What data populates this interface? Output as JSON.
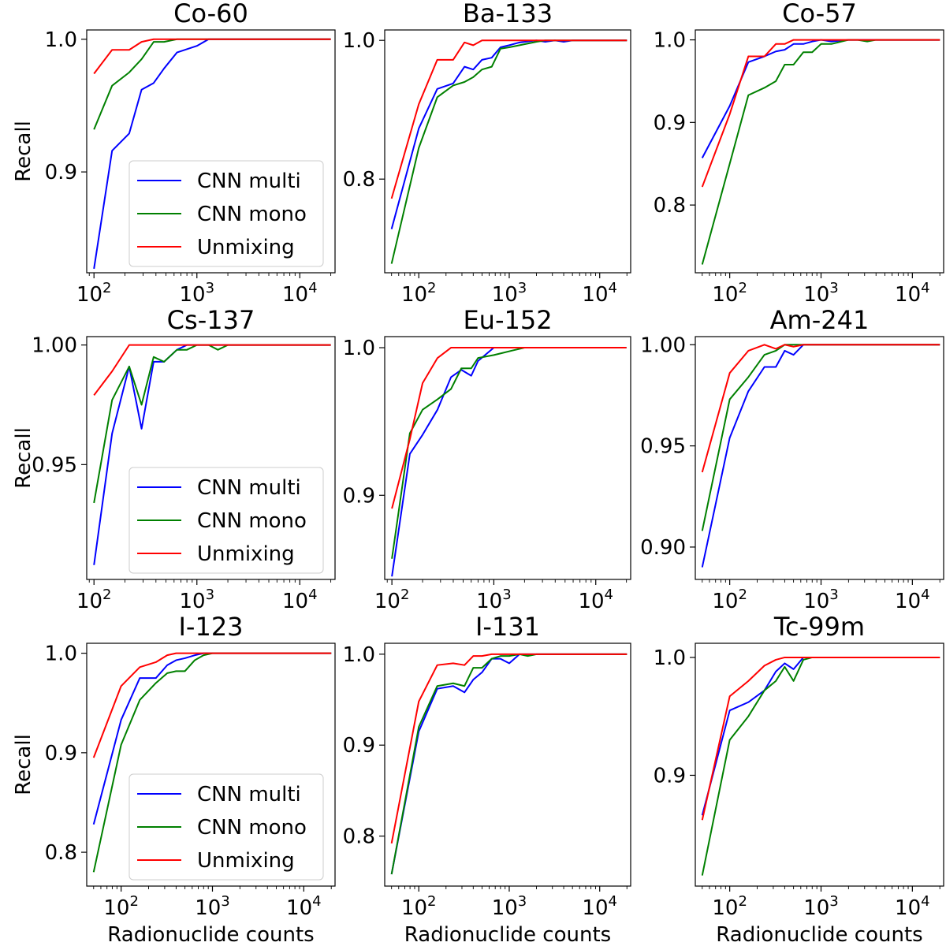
{
  "figure": {
    "series_names": [
      "CNN multi",
      "CNN mono",
      "Unmixing"
    ],
    "series_colors": [
      "#0000ff",
      "#008000",
      "#ff0000"
    ],
    "xlabel": "Radionuclide counts",
    "ylabel": "Recall",
    "xtick_base": "10"
  },
  "chart_data": [
    {
      "type": "line",
      "title": "Co-60",
      "xscale": "log",
      "xlim": [
        85,
        22000
      ],
      "ylim": [
        0.824,
        1.007
      ],
      "yticks": [
        0.9,
        1.0
      ],
      "ytick_labels": [
        "0.9",
        "1.0"
      ],
      "xticks": [
        100,
        1000,
        10000
      ],
      "xtick_exponents": [
        "2",
        "3",
        "4"
      ],
      "ylabel": "Recall",
      "xlabel": "",
      "legend": true,
      "legend_loc": "lower-right",
      "x": [
        100,
        150,
        220,
        290,
        380,
        480,
        640,
        1000,
        1300,
        2000,
        20000
      ],
      "series": [
        {
          "name": "CNN multi",
          "values": [
            0.827,
            0.916,
            0.929,
            0.962,
            0.967,
            0.978,
            0.99,
            0.995,
            1.0,
            1.0,
            1.0
          ]
        },
        {
          "name": "CNN mono",
          "values": [
            0.932,
            0.965,
            0.975,
            0.985,
            0.998,
            0.998,
            1.0,
            1.0,
            1.0,
            1.0,
            1.0
          ]
        },
        {
          "name": "Unmixing",
          "values": [
            0.974,
            0.992,
            0.992,
            0.998,
            1.0,
            1.0,
            1.0,
            1.0,
            1.0,
            1.0,
            1.0
          ]
        }
      ]
    },
    {
      "type": "line",
      "title": "Ba-133",
      "xscale": "log",
      "xlim": [
        42,
        22000
      ],
      "ylim": [
        0.665,
        1.015
      ],
      "yticks": [
        0.8,
        1.0
      ],
      "ytick_labels": [
        "0.8",
        "1.0"
      ],
      "xticks": [
        100,
        1000,
        10000
      ],
      "xtick_exponents": [
        "2",
        "3",
        "4"
      ],
      "ylabel": "",
      "xlabel": "",
      "legend": false,
      "legend_loc": "",
      "x": [
        50,
        100,
        160,
        240,
        320,
        400,
        500,
        640,
        800,
        1000,
        1300,
        2000,
        2500,
        3200,
        4000,
        5000,
        20000
      ],
      "series": [
        {
          "name": "CNN multi",
          "values": [
            0.728,
            0.873,
            0.93,
            0.938,
            0.962,
            0.958,
            0.972,
            0.975,
            0.99,
            0.993,
            0.997,
            1.0,
            0.998,
            1.0,
            0.998,
            1.0,
            1.0
          ]
        },
        {
          "name": "CNN mono",
          "values": [
            0.678,
            0.845,
            0.918,
            0.935,
            0.94,
            0.947,
            0.958,
            0.962,
            0.988,
            0.99,
            0.993,
            0.998,
            1.0,
            1.0,
            1.0,
            1.0,
            1.0
          ]
        },
        {
          "name": "Unmixing",
          "values": [
            0.772,
            0.908,
            0.972,
            0.972,
            0.997,
            0.993,
            1.0,
            1.0,
            1.0,
            1.0,
            1.0,
            1.0,
            1.0,
            1.0,
            1.0,
            1.0,
            1.0
          ]
        }
      ]
    },
    {
      "type": "line",
      "title": "Co-57",
      "xscale": "log",
      "xlim": [
        42,
        22000
      ],
      "ylim": [
        0.718,
        1.012
      ],
      "yticks": [
        0.8,
        0.9,
        1.0
      ],
      "ytick_labels": [
        "0.8",
        "0.9",
        "1.0"
      ],
      "xticks": [
        100,
        1000,
        10000
      ],
      "xtick_exponents": [
        "2",
        "3",
        "4"
      ],
      "ylabel": "",
      "xlabel": "",
      "legend": false,
      "legend_loc": "",
      "x": [
        50,
        100,
        160,
        240,
        320,
        400,
        500,
        640,
        800,
        1000,
        1300,
        2000,
        2500,
        3200,
        4000,
        5000,
        20000
      ],
      "series": [
        {
          "name": "CNN multi",
          "values": [
            0.857,
            0.92,
            0.973,
            0.98,
            0.986,
            0.988,
            0.995,
            0.995,
            0.998,
            1.0,
            0.998,
            1.0,
            1.0,
            1.0,
            1.0,
            1.0,
            1.0
          ]
        },
        {
          "name": "CNN mono",
          "values": [
            0.728,
            0.85,
            0.933,
            0.942,
            0.95,
            0.97,
            0.97,
            0.985,
            0.985,
            0.995,
            0.995,
            1.0,
            1.0,
            0.998,
            1.0,
            1.0,
            1.0
          ]
        },
        {
          "name": "Unmixing",
          "values": [
            0.822,
            0.91,
            0.98,
            0.98,
            0.995,
            0.995,
            1.0,
            1.0,
            1.0,
            1.0,
            1.0,
            1.0,
            1.0,
            1.0,
            1.0,
            1.0,
            1.0
          ]
        }
      ]
    },
    {
      "type": "line",
      "title": "Cs-137",
      "xscale": "log",
      "xlim": [
        85,
        22000
      ],
      "ylim": [
        0.902,
        1.0035
      ],
      "yticks": [
        0.95,
        1.0
      ],
      "ytick_labels": [
        "0.95",
        "1.00"
      ],
      "xticks": [
        100,
        1000,
        10000
      ],
      "xtick_exponents": [
        "2",
        "3",
        "4"
      ],
      "ylabel": "Recall",
      "xlabel": "",
      "legend": true,
      "legend_loc": "lower-right",
      "x": [
        100,
        150,
        220,
        290,
        380,
        480,
        640,
        800,
        1000,
        1300,
        1600,
        2000,
        20000
      ],
      "series": [
        {
          "name": "CNN multi",
          "values": [
            0.908,
            0.963,
            0.991,
            0.965,
            0.993,
            0.993,
            0.998,
            1.0,
            1.0,
            1.0,
            1.0,
            1.0,
            1.0
          ]
        },
        {
          "name": "CNN mono",
          "values": [
            0.934,
            0.977,
            0.991,
            0.975,
            0.995,
            0.993,
            0.998,
            0.998,
            1.0,
            1.0,
            0.998,
            1.0,
            1.0
          ]
        },
        {
          "name": "Unmixing",
          "values": [
            0.979,
            0.989,
            1.0,
            1.0,
            1.0,
            1.0,
            1.0,
            1.0,
            1.0,
            1.0,
            1.0,
            1.0,
            1.0
          ]
        }
      ]
    },
    {
      "type": "line",
      "title": "Eu-152",
      "xscale": "log",
      "xlim": [
        85,
        22000
      ],
      "ylim": [
        0.843,
        1.0075
      ],
      "yticks": [
        0.9,
        1.0
      ],
      "ytick_labels": [
        "0.9",
        "1.0"
      ],
      "xticks": [
        100,
        1000,
        10000
      ],
      "xtick_exponents": [
        "2",
        "3",
        "4"
      ],
      "ylabel": "",
      "xlabel": "",
      "legend": false,
      "legend_loc": "",
      "x": [
        100,
        150,
        200,
        280,
        380,
        480,
        600,
        700,
        1000,
        1500,
        2000,
        20000
      ],
      "series": [
        {
          "name": "CNN multi",
          "values": [
            0.845,
            0.928,
            0.941,
            0.958,
            0.98,
            0.985,
            0.981,
            0.991,
            1.0,
            1.0,
            1.0,
            1.0
          ]
        },
        {
          "name": "CNN mono",
          "values": [
            0.857,
            0.942,
            0.958,
            0.965,
            0.972,
            0.986,
            0.986,
            0.993,
            0.995,
            0.998,
            1.0,
            1.0
          ]
        },
        {
          "name": "Unmixing",
          "values": [
            0.891,
            0.938,
            0.976,
            0.993,
            1.0,
            1.0,
            1.0,
            1.0,
            1.0,
            1.0,
            1.0,
            1.0
          ]
        }
      ]
    },
    {
      "type": "line",
      "title": "Am-241",
      "xscale": "log",
      "xlim": [
        42,
        22000
      ],
      "ylim": [
        0.884,
        1.004
      ],
      "yticks": [
        0.9,
        0.95,
        1.0
      ],
      "ytick_labels": [
        "0.90",
        "0.95",
        "1.00"
      ],
      "xticks": [
        100,
        1000,
        10000
      ],
      "xtick_exponents": [
        "2",
        "3",
        "4"
      ],
      "ylabel": "",
      "xlabel": "",
      "legend": false,
      "legend_loc": "",
      "x": [
        50,
        100,
        160,
        240,
        320,
        400,
        500,
        640,
        800,
        1000,
        20000
      ],
      "series": [
        {
          "name": "CNN multi",
          "values": [
            0.89,
            0.954,
            0.977,
            0.989,
            0.989,
            0.997,
            0.995,
            1.0,
            1.0,
            1.0,
            1.0
          ]
        },
        {
          "name": "CNN mono",
          "values": [
            0.908,
            0.973,
            0.984,
            0.995,
            0.997,
            1.0,
            1.0,
            1.0,
            1.0,
            1.0,
            1.0
          ]
        },
        {
          "name": "Unmixing",
          "values": [
            0.937,
            0.986,
            0.997,
            1.0,
            0.998,
            1.0,
            0.999,
            1.0,
            1.0,
            1.0,
            1.0
          ]
        }
      ]
    },
    {
      "type": "line",
      "title": "I-123",
      "xscale": "log",
      "xlim": [
        42,
        22000
      ],
      "ylim": [
        0.766,
        1.01
      ],
      "yticks": [
        0.8,
        0.9,
        1.0
      ],
      "ytick_labels": [
        "0.8",
        "0.9",
        "1.0"
      ],
      "xticks": [
        100,
        1000,
        10000
      ],
      "xtick_exponents": [
        "2",
        "3",
        "4"
      ],
      "ylabel": "Recall",
      "xlabel": "Radionuclide counts",
      "legend": true,
      "legend_loc": "lower-right",
      "x": [
        50,
        100,
        160,
        240,
        320,
        400,
        500,
        640,
        800,
        1000,
        1300,
        2000,
        20000
      ],
      "series": [
        {
          "name": "CNN multi",
          "values": [
            0.828,
            0.933,
            0.975,
            0.975,
            0.988,
            0.993,
            0.995,
            0.998,
            1.0,
            1.0,
            1.0,
            1.0,
            1.0
          ]
        },
        {
          "name": "CNN mono",
          "values": [
            0.78,
            0.908,
            0.953,
            0.97,
            0.98,
            0.982,
            0.982,
            0.993,
            0.998,
            1.0,
            1.0,
            1.0,
            1.0
          ]
        },
        {
          "name": "Unmixing",
          "values": [
            0.895,
            0.967,
            0.986,
            0.991,
            0.998,
            1.0,
            1.0,
            1.0,
            1.0,
            1.0,
            1.0,
            1.0,
            1.0
          ]
        }
      ]
    },
    {
      "type": "line",
      "title": "I-131",
      "xscale": "log",
      "xlim": [
        42,
        22000
      ],
      "ylim": [
        0.745,
        1.012
      ],
      "yticks": [
        0.8,
        0.9,
        1.0
      ],
      "ytick_labels": [
        "0.8",
        "0.9",
        "1.0"
      ],
      "xticks": [
        100,
        1000,
        10000
      ],
      "xtick_exponents": [
        "2",
        "3",
        "4"
      ],
      "ylabel": "",
      "xlabel": "Radionuclide counts",
      "legend": false,
      "legend_loc": "",
      "x": [
        50,
        100,
        160,
        240,
        320,
        400,
        500,
        640,
        800,
        1000,
        1300,
        1600,
        2000,
        20000
      ],
      "series": [
        {
          "name": "CNN multi",
          "values": [
            0.758,
            0.915,
            0.962,
            0.965,
            0.958,
            0.972,
            0.98,
            0.995,
            0.995,
            0.99,
            1.0,
            1.0,
            1.0,
            1.0
          ]
        },
        {
          "name": "CNN mono",
          "values": [
            0.758,
            0.92,
            0.965,
            0.968,
            0.965,
            0.985,
            0.985,
            0.995,
            0.998,
            0.998,
            1.0,
            0.998,
            1.0,
            1.0
          ]
        },
        {
          "name": "Unmixing",
          "values": [
            0.792,
            0.948,
            0.988,
            0.99,
            0.988,
            0.998,
            0.998,
            1.0,
            1.0,
            1.0,
            1.0,
            1.0,
            1.0,
            1.0
          ]
        }
      ]
    },
    {
      "type": "line",
      "title": "Tc-99m",
      "xscale": "log",
      "xlim": [
        42,
        22000
      ],
      "ylim": [
        0.806,
        1.012
      ],
      "yticks": [
        0.9,
        1.0
      ],
      "ytick_labels": [
        "0.9",
        "1.0"
      ],
      "xticks": [
        100,
        1000,
        10000
      ],
      "xtick_exponents": [
        "2",
        "3",
        "4"
      ],
      "ylabel": "",
      "xlabel": "Radionuclide counts",
      "legend": false,
      "legend_loc": "",
      "x": [
        50,
        100,
        160,
        240,
        320,
        400,
        500,
        640,
        800,
        1000,
        20000
      ],
      "series": [
        {
          "name": "CNN multi",
          "values": [
            0.866,
            0.955,
            0.962,
            0.972,
            0.988,
            0.995,
            0.99,
            1.0,
            1.0,
            1.0,
            1.0
          ]
        },
        {
          "name": "CNN mono",
          "values": [
            0.815,
            0.93,
            0.95,
            0.972,
            0.98,
            0.992,
            0.98,
            0.998,
            1.0,
            1.0,
            1.0
          ]
        },
        {
          "name": "Unmixing",
          "values": [
            0.862,
            0.967,
            0.98,
            0.993,
            0.998,
            1.0,
            1.0,
            1.0,
            1.0,
            1.0,
            1.0
          ]
        }
      ]
    }
  ]
}
